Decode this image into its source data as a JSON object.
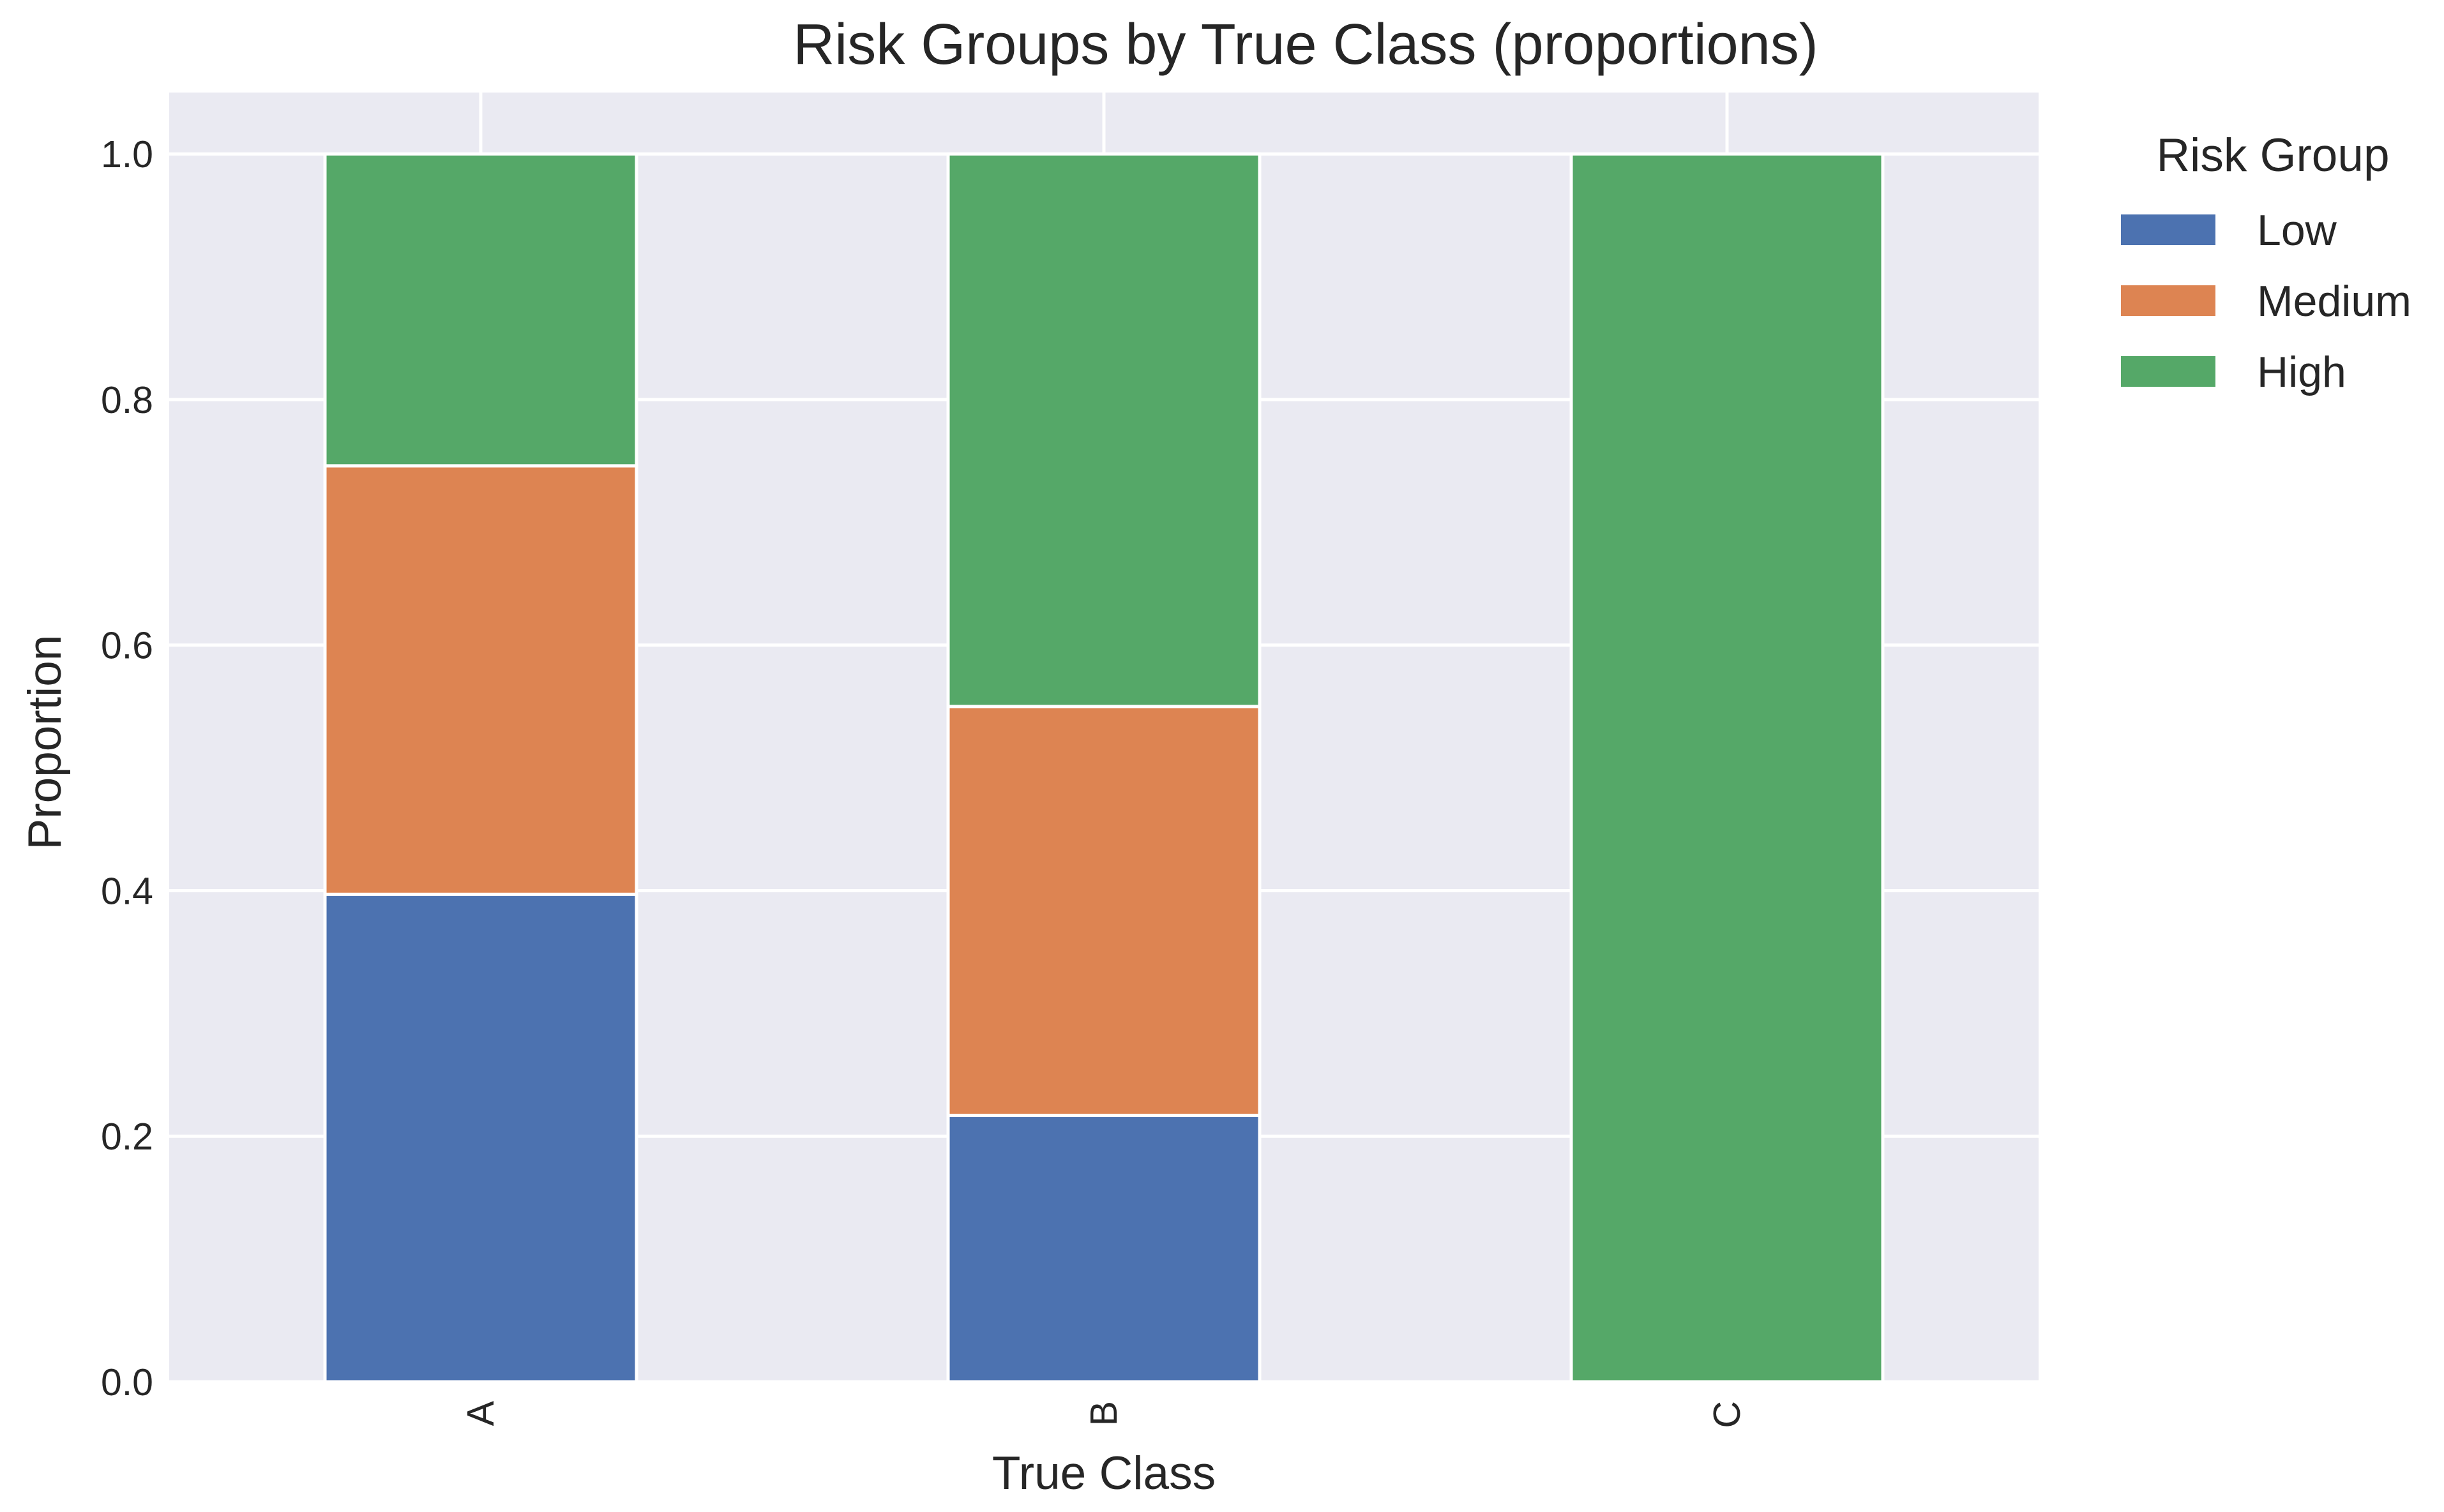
{
  "chart_data": {
    "type": "bar",
    "stacked": true,
    "title": "Risk Groups by True Class (proportions)",
    "xlabel": "True Class",
    "ylabel": "Proportion",
    "categories": [
      "A",
      "B",
      "C"
    ],
    "series": [
      {
        "name": "Low",
        "values": [
          0.397,
          0.217,
          0.0
        ],
        "color": "#4c72b0"
      },
      {
        "name": "Medium",
        "values": [
          0.349,
          0.333,
          0.0
        ],
        "color": "#dd8452"
      },
      {
        "name": "High",
        "values": [
          0.254,
          0.45,
          1.0
        ],
        "color": "#55a868"
      }
    ],
    "ylim": [
      0,
      1.05
    ],
    "yticks": [
      "0.0",
      "0.2",
      "0.4",
      "0.6",
      "0.8",
      "1.0"
    ],
    "x_tick_rotation": "vertical",
    "grid": true,
    "background": "#eaeaf2",
    "legend": {
      "title": "Risk Group",
      "placement": "outside-right"
    }
  }
}
